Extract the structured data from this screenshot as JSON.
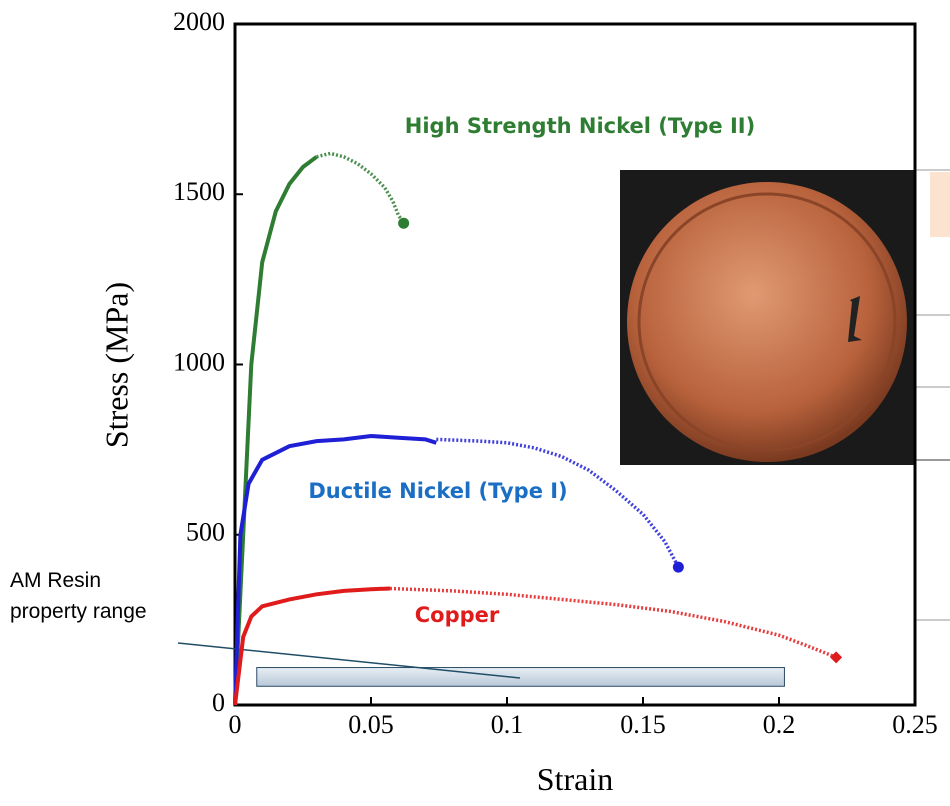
{
  "chart_data": {
    "type": "line",
    "xlabel": "Strain",
    "ylabel": "Stress (MPa)",
    "xlim": [
      0,
      0.25
    ],
    "ylim": [
      0,
      2000
    ],
    "xticks": [
      0,
      0.05,
      0.1,
      0.15,
      0.2,
      0.25
    ],
    "yticks": [
      0,
      500,
      1000,
      1500,
      2000
    ],
    "series": [
      {
        "name": "High Strength Nickel (Type II)",
        "color": "#2e7d32",
        "marker": "circle",
        "x": [
          0,
          0.003,
          0.006,
          0.01,
          0.015,
          0.02,
          0.025,
          0.03
        ],
        "values": [
          0,
          500,
          1000,
          1300,
          1450,
          1530,
          1580,
          1610
        ],
        "x_dotted": [
          0.03,
          0.035,
          0.04,
          0.045,
          0.05,
          0.055,
          0.058,
          0.06,
          0.062
        ],
        "values_dotted": [
          1610,
          1620,
          1610,
          1590,
          1560,
          1520,
          1480,
          1440,
          1415
        ]
      },
      {
        "name": "Ductile Nickel (Type I)",
        "color": "#1f1fd6",
        "marker": "circle",
        "x": [
          0,
          0.002,
          0.005,
          0.01,
          0.02,
          0.03,
          0.04,
          0.05,
          0.06,
          0.07,
          0.074
        ],
        "values": [
          0,
          500,
          650,
          720,
          760,
          775,
          780,
          790,
          785,
          780,
          770
        ],
        "x_dotted": [
          0.074,
          0.09,
          0.1,
          0.11,
          0.12,
          0.13,
          0.14,
          0.15,
          0.158,
          0.163
        ],
        "values_dotted": [
          780,
          775,
          770,
          755,
          730,
          690,
          630,
          560,
          480,
          405
        ]
      },
      {
        "name": "Copper",
        "color": "#e01b1b",
        "marker": "diamond",
        "x": [
          0,
          0.003,
          0.006,
          0.01,
          0.02,
          0.03,
          0.04,
          0.05,
          0.057
        ],
        "values": [
          0,
          200,
          260,
          290,
          310,
          325,
          335,
          340,
          342
        ],
        "x_dotted": [
          0.057,
          0.08,
          0.1,
          0.12,
          0.14,
          0.16,
          0.18,
          0.2,
          0.21,
          0.221
        ],
        "values_dotted": [
          342,
          335,
          325,
          310,
          295,
          275,
          245,
          205,
          175,
          140
        ]
      }
    ],
    "resin_range": {
      "label": [
        "AM Resin",
        "property range"
      ],
      "x": [
        0.008,
        0.202
      ],
      "y": [
        55,
        110
      ]
    }
  }
}
